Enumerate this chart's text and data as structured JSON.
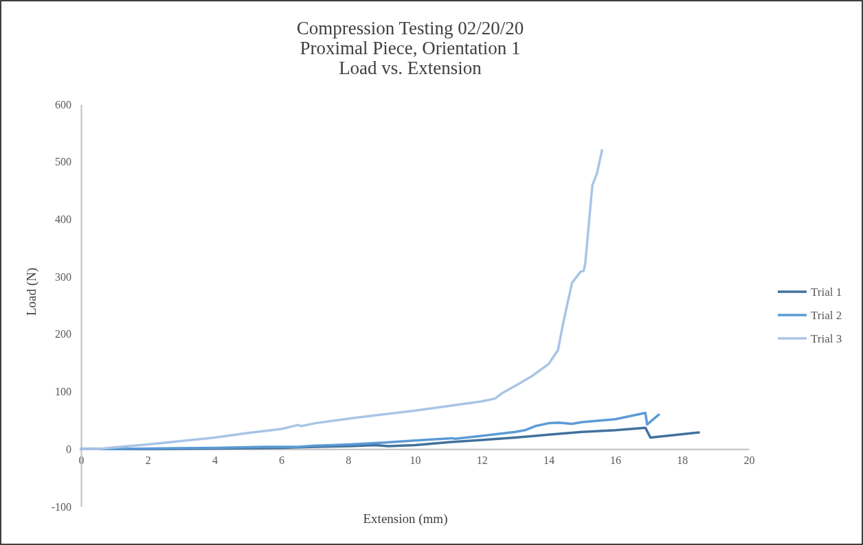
{
  "chart_data": {
    "type": "line",
    "title": "Compression Testing 02/20/20\nProximal Piece, Orientation 1\nLoad vs. Extension",
    "xlabel": "Extension (mm)",
    "ylabel": "Load (N)",
    "xlim": [
      0,
      20
    ],
    "xticks": [
      0,
      2,
      4,
      6,
      8,
      10,
      12,
      14,
      16,
      18,
      20
    ],
    "ylim": [
      -100,
      600
    ],
    "yticks": [
      -100,
      0,
      100,
      200,
      300,
      400,
      500,
      600
    ],
    "grid": false,
    "legend": "right",
    "marker": "none",
    "line_style": "solid",
    "series": [
      {
        "name": "Trial 1",
        "color": "#41719c",
        "x": [
          0,
          0.5,
          2,
          4,
          6,
          7,
          8,
          8.8,
          9.2,
          10,
          11,
          12,
          13,
          14,
          15,
          16,
          16.9,
          17.05,
          18.5
        ],
        "values": [
          0,
          0,
          0,
          1,
          2,
          4,
          5,
          7,
          5,
          7,
          12,
          16,
          20,
          25,
          30,
          33,
          37,
          20,
          29
        ]
      },
      {
        "name": "Trial 2",
        "color": "#5b9bd5",
        "x": [
          0,
          0.5,
          2,
          4,
          5.5,
          6.5,
          7,
          7.5,
          8,
          9,
          10,
          11.1,
          11.2,
          12,
          13,
          13.3,
          13.6,
          14,
          14.3,
          14.7,
          15,
          16,
          16.9,
          16.95,
          17.3
        ],
        "values": [
          0,
          0,
          1,
          2,
          4,
          4,
          6,
          7,
          8,
          11,
          15,
          19,
          18,
          23,
          30,
          33,
          40,
          45,
          46,
          44,
          47,
          52,
          63,
          43,
          60
        ]
      },
      {
        "name": "Trial 3",
        "color": "#a9c4e6",
        "x": [
          0,
          0.5,
          1,
          2,
          3,
          4,
          5,
          6,
          6.5,
          6.6,
          7,
          8,
          9,
          10,
          11,
          12,
          12.4,
          12.6,
          13,
          13.5,
          14,
          14.28,
          14.44,
          14.7,
          14.96,
          15.05,
          15.1,
          15.31,
          15.45,
          15.6
        ],
        "values": [
          0,
          0,
          3,
          8,
          14,
          20,
          28,
          35,
          42,
          40,
          45,
          53,
          60,
          67,
          75,
          83,
          88,
          97,
          110,
          127,
          148,
          172,
          220,
          289,
          309,
          310,
          324,
          459,
          480,
          520
        ]
      }
    ]
  }
}
